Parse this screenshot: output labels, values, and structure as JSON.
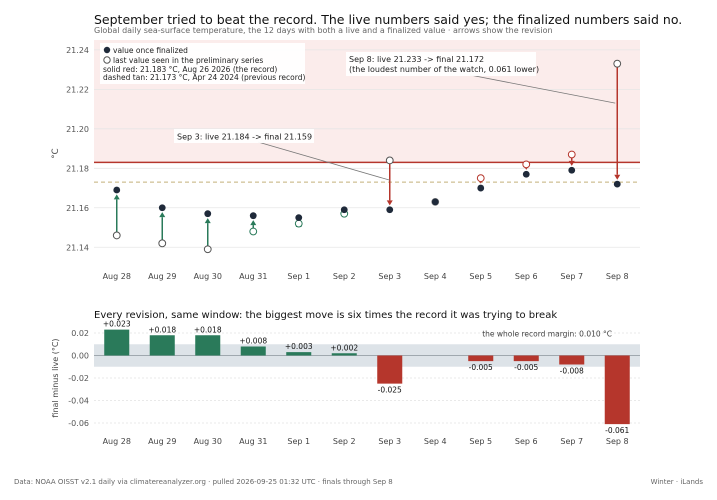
{
  "title": "September tried to beat the record. The live numbers said yes; the finalized numbers said no.",
  "subtitle": "Global daily sea-surface temperature, the 12 days with both a live and a finalized value · arrows show the revision",
  "footer_left": "Data: NOAA OISST v2.1 daily via climatereanalyzer.org · pulled 2026-09-25 01:32 UTC · finals through Sep 8",
  "footer_right": "Winter · iLands",
  "colors": {
    "record_red": "#b5362c",
    "raise_green": "#2a7a5a",
    "final_dot": "#1f2a3a",
    "shade_red": "#fbeceb",
    "shade_gray": "#dde3e8",
    "dashed_tan": "#c4b07a"
  },
  "chart_data": [
    {
      "type": "scatter",
      "categories": [
        "Aug 28",
        "Aug 29",
        "Aug 30",
        "Aug 31",
        "Sep 1",
        "Sep 2",
        "Sep 3",
        "Sep 4",
        "Sep 5",
        "Sep 6",
        "Sep 7",
        "Sep 8"
      ],
      "series": [
        {
          "name": "value once finalized",
          "values": [
            21.169,
            21.16,
            21.157,
            21.156,
            21.155,
            21.159,
            21.159,
            21.163,
            21.17,
            21.177,
            21.179,
            21.172
          ]
        },
        {
          "name": "last value seen in the preliminary series",
          "values": [
            21.146,
            21.142,
            21.139,
            21.148,
            21.152,
            21.157,
            21.184,
            21.163,
            21.175,
            21.182,
            21.187,
            21.233
          ]
        }
      ],
      "ylabel": "°C",
      "ylim": [
        21.13,
        21.245
      ],
      "yticks": [
        "21.14",
        "21.16",
        "21.18",
        "21.20",
        "21.22",
        "21.24"
      ],
      "record_line": 21.183,
      "previous_record_line": 21.173,
      "legend": {
        "final": "value once finalized",
        "live": "last value seen in the preliminary series",
        "solid_note": "solid red: 21.183 °C, Aug 26 2026 (the record)",
        "dashed_note": "dashed tan: 21.173 °C, Apr 24 2024 (previous record)",
        "position": "top-left"
      },
      "annotations": [
        {
          "text": "Sep 3: live 21.184 -> final 21.159",
          "target": "Sep 3"
        },
        {
          "text": "Sep 8: live 21.233 -> final 21.172",
          "text2": "(the loudest number of the watch, 0.061 lower)",
          "target": "Sep 8"
        }
      ],
      "grid": "horizontal"
    },
    {
      "type": "bar",
      "title": "Every revision, same window: the biggest move is six times the record it was trying to break",
      "categories": [
        "Aug 28",
        "Aug 29",
        "Aug 30",
        "Aug 31",
        "Sep 1",
        "Sep 2",
        "Sep 3",
        "Sep 4",
        "Sep 5",
        "Sep 6",
        "Sep 7",
        "Sep 8"
      ],
      "values": [
        0.023,
        0.018,
        0.018,
        0.008,
        0.003,
        0.002,
        -0.025,
        0.0,
        -0.005,
        -0.005,
        -0.008,
        -0.061
      ],
      "labels": [
        "+0.023",
        "+0.018",
        "+0.018",
        "+0.008",
        "+0.003",
        "+0.002",
        "-0.025",
        "",
        "-0.005",
        "-0.005",
        "-0.008",
        "-0.061"
      ],
      "ylabel": "final minus live (°C)",
      "ylim": [
        -0.068,
        0.028
      ],
      "yticks": [
        "0.02",
        "0.00",
        "-0.02",
        "-0.04",
        "-0.06"
      ],
      "band": [
        -0.01,
        0.01
      ],
      "band_label": "the whole record margin: 0.010 °C",
      "grid": "horizontal"
    }
  ]
}
